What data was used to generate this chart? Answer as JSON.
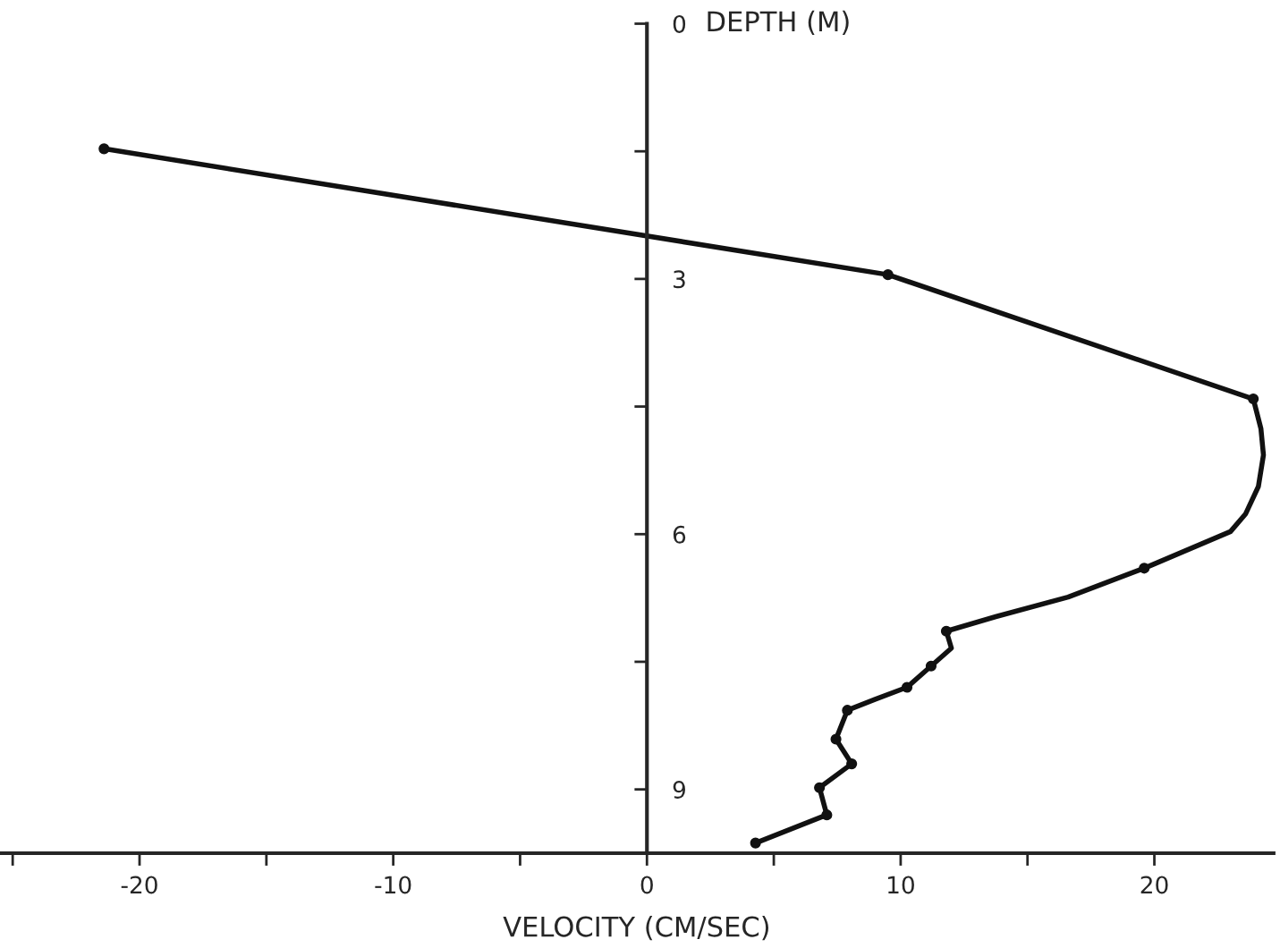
{
  "chart_data": {
    "type": "line",
    "xlabel": "VELOCITY (CM/SEC)",
    "ylabel": "DEPTH (M)",
    "xlim": [
      -25.5,
      24.7
    ],
    "ylim": [
      9.75,
      0
    ],
    "xticks": [
      {
        "value": -25,
        "label": null
      },
      -20,
      {
        "value": -15,
        "label": null
      },
      -10,
      {
        "value": -5,
        "label": null
      },
      0,
      {
        "value": 5,
        "label": null
      },
      10,
      {
        "value": 15,
        "label": null
      },
      20
    ],
    "yticks": [
      0,
      {
        "value": 1.5,
        "label": null
      },
      3,
      {
        "value": 4.5,
        "label": null
      },
      6,
      {
        "value": 7.5,
        "label": null
      },
      9
    ],
    "grid": false,
    "legend": false,
    "series": [
      {
        "type": "line",
        "color": "#111111",
        "marker": "none",
        "x": [
          -21.4,
          9.5,
          23.9,
          24.2,
          24.3,
          24.1,
          23.6,
          23.0,
          19.6,
          16.6,
          13.75,
          11.8,
          12.0,
          11.2,
          10.25,
          9.0,
          7.9,
          7.45,
          8.07,
          6.8,
          7.09,
          4.28
        ],
        "values": [
          1.47,
          2.95,
          4.41,
          4.76,
          5.07,
          5.44,
          5.76,
          5.97,
          6.4,
          6.74,
          6.97,
          7.14,
          7.34,
          7.55,
          7.8,
          7.94,
          8.07,
          8.41,
          8.7,
          8.98,
          9.3,
          9.63
        ]
      },
      {
        "type": "scatter",
        "color": "#111111",
        "marker": "circle",
        "x": [
          -21.4,
          9.5,
          23.9,
          19.6,
          11.8,
          11.2,
          10.25,
          7.9,
          7.45,
          8.07,
          6.8,
          7.09,
          4.28
        ],
        "values": [
          1.47,
          2.95,
          4.41,
          6.4,
          7.14,
          7.55,
          7.8,
          8.07,
          8.41,
          8.7,
          8.98,
          9.3,
          9.63
        ]
      }
    ]
  }
}
